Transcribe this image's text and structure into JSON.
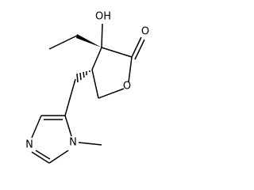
{
  "atoms": {
    "hydroxyl": "OH",
    "carbonyl_oxygen": "O",
    "ring_oxygen": "O",
    "imidazole_n3": "N",
    "imidazole_n1": "N"
  }
}
